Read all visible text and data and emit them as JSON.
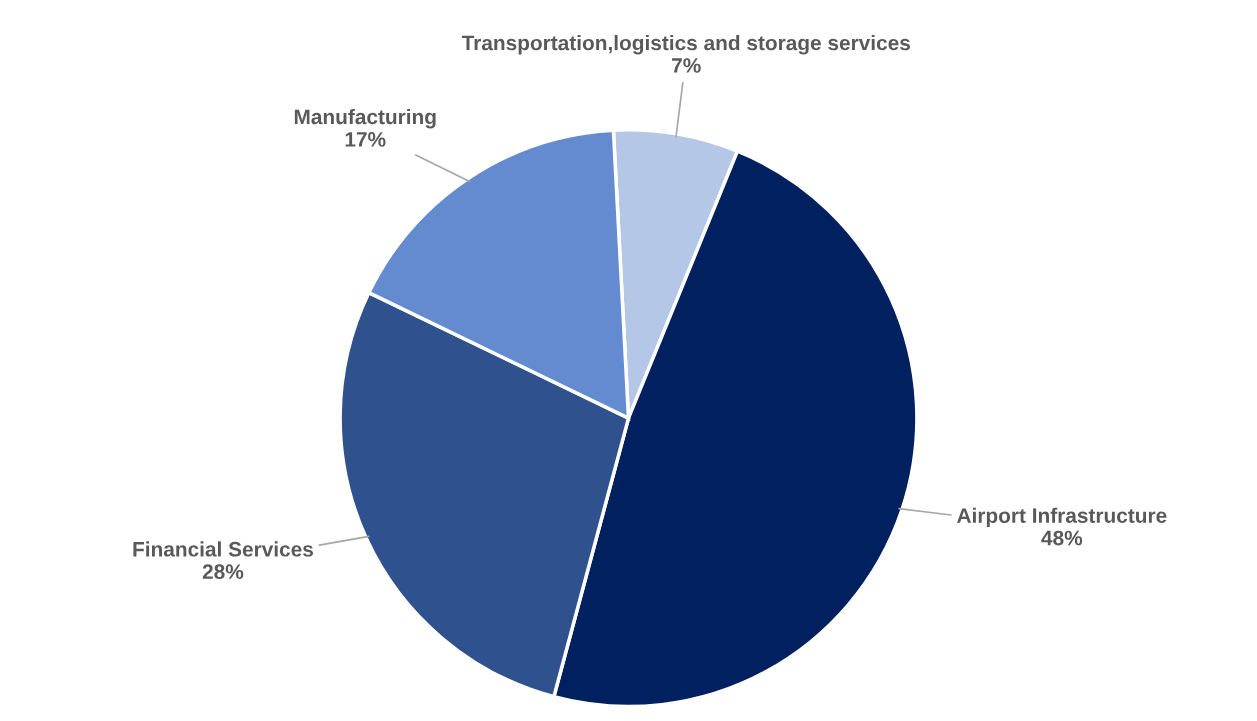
{
  "chart_data": {
    "type": "pie",
    "categories": [
      "Transportation,logistics and storage services",
      "Airport Infrastructure",
      "Financial Services",
      "Manufacturing"
    ],
    "values": [
      7,
      48,
      28,
      17
    ],
    "colors": [
      "#b4c7e7",
      "#002060",
      "#2f528f",
      "#648bd0"
    ],
    "value_labels": [
      "7%",
      "48%",
      "28%",
      "17%"
    ],
    "legend": false
  }
}
